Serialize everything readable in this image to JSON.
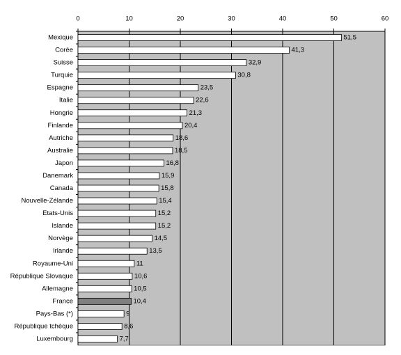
{
  "chart_data": {
    "type": "bar",
    "orientation": "horizontal",
    "categories": [
      "Mexique",
      "Corée",
      "Suisse",
      "Turquie",
      "Espagne",
      "Italie",
      "Hongrie",
      "Finlande",
      "Autriche",
      "Australie",
      "Japon",
      "Danemark",
      "Canada",
      "Nouvelle-Zélande",
      "Etats-Unis",
      "Islande",
      "Norvège",
      "Irlande",
      "Royaume-Uni",
      "République Slovaque",
      "Allemagne",
      "France",
      "Pays-Bas (*)",
      "République tchèque",
      "Luxembourg"
    ],
    "values": [
      51.5,
      41.3,
      32.9,
      30.8,
      23.5,
      22.6,
      21.3,
      20.4,
      18.6,
      18.5,
      16.8,
      15.9,
      15.8,
      15.4,
      15.2,
      15.2,
      14.5,
      13.5,
      11,
      10.6,
      10.5,
      10.4,
      9,
      8.6,
      7.7
    ],
    "value_labels": [
      "51,5",
      "41,3",
      "32,9",
      "30,8",
      "23,5",
      "22,6",
      "21,3",
      "20,4",
      "18,6",
      "18,5",
      "16,8",
      "15,9",
      "15,8",
      "15,4",
      "15,2",
      "15,2",
      "14,5",
      "13,5",
      "11",
      "10,6",
      "10,5",
      "10,4",
      "9",
      "8,6",
      "7,7"
    ],
    "colors": [
      "#ffffff",
      "#ffffff",
      "#ffffff",
      "#ffffff",
      "#ffffff",
      "#ffffff",
      "#ffffff",
      "#ffffff",
      "#ffffff",
      "#ffffff",
      "#ffffff",
      "#ffffff",
      "#ffffff",
      "#ffffff",
      "#ffffff",
      "#ffffff",
      "#ffffff",
      "#ffffff",
      "#ffffff",
      "#ffffff",
      "#ffffff",
      "#808080",
      "#ffffff",
      "#ffffff",
      "#ffffff"
    ],
    "xlim": [
      0,
      60
    ],
    "xticks": [
      0,
      10,
      20,
      30,
      40,
      50,
      60
    ],
    "grid": true,
    "plot_background": "#c0c0c0"
  }
}
